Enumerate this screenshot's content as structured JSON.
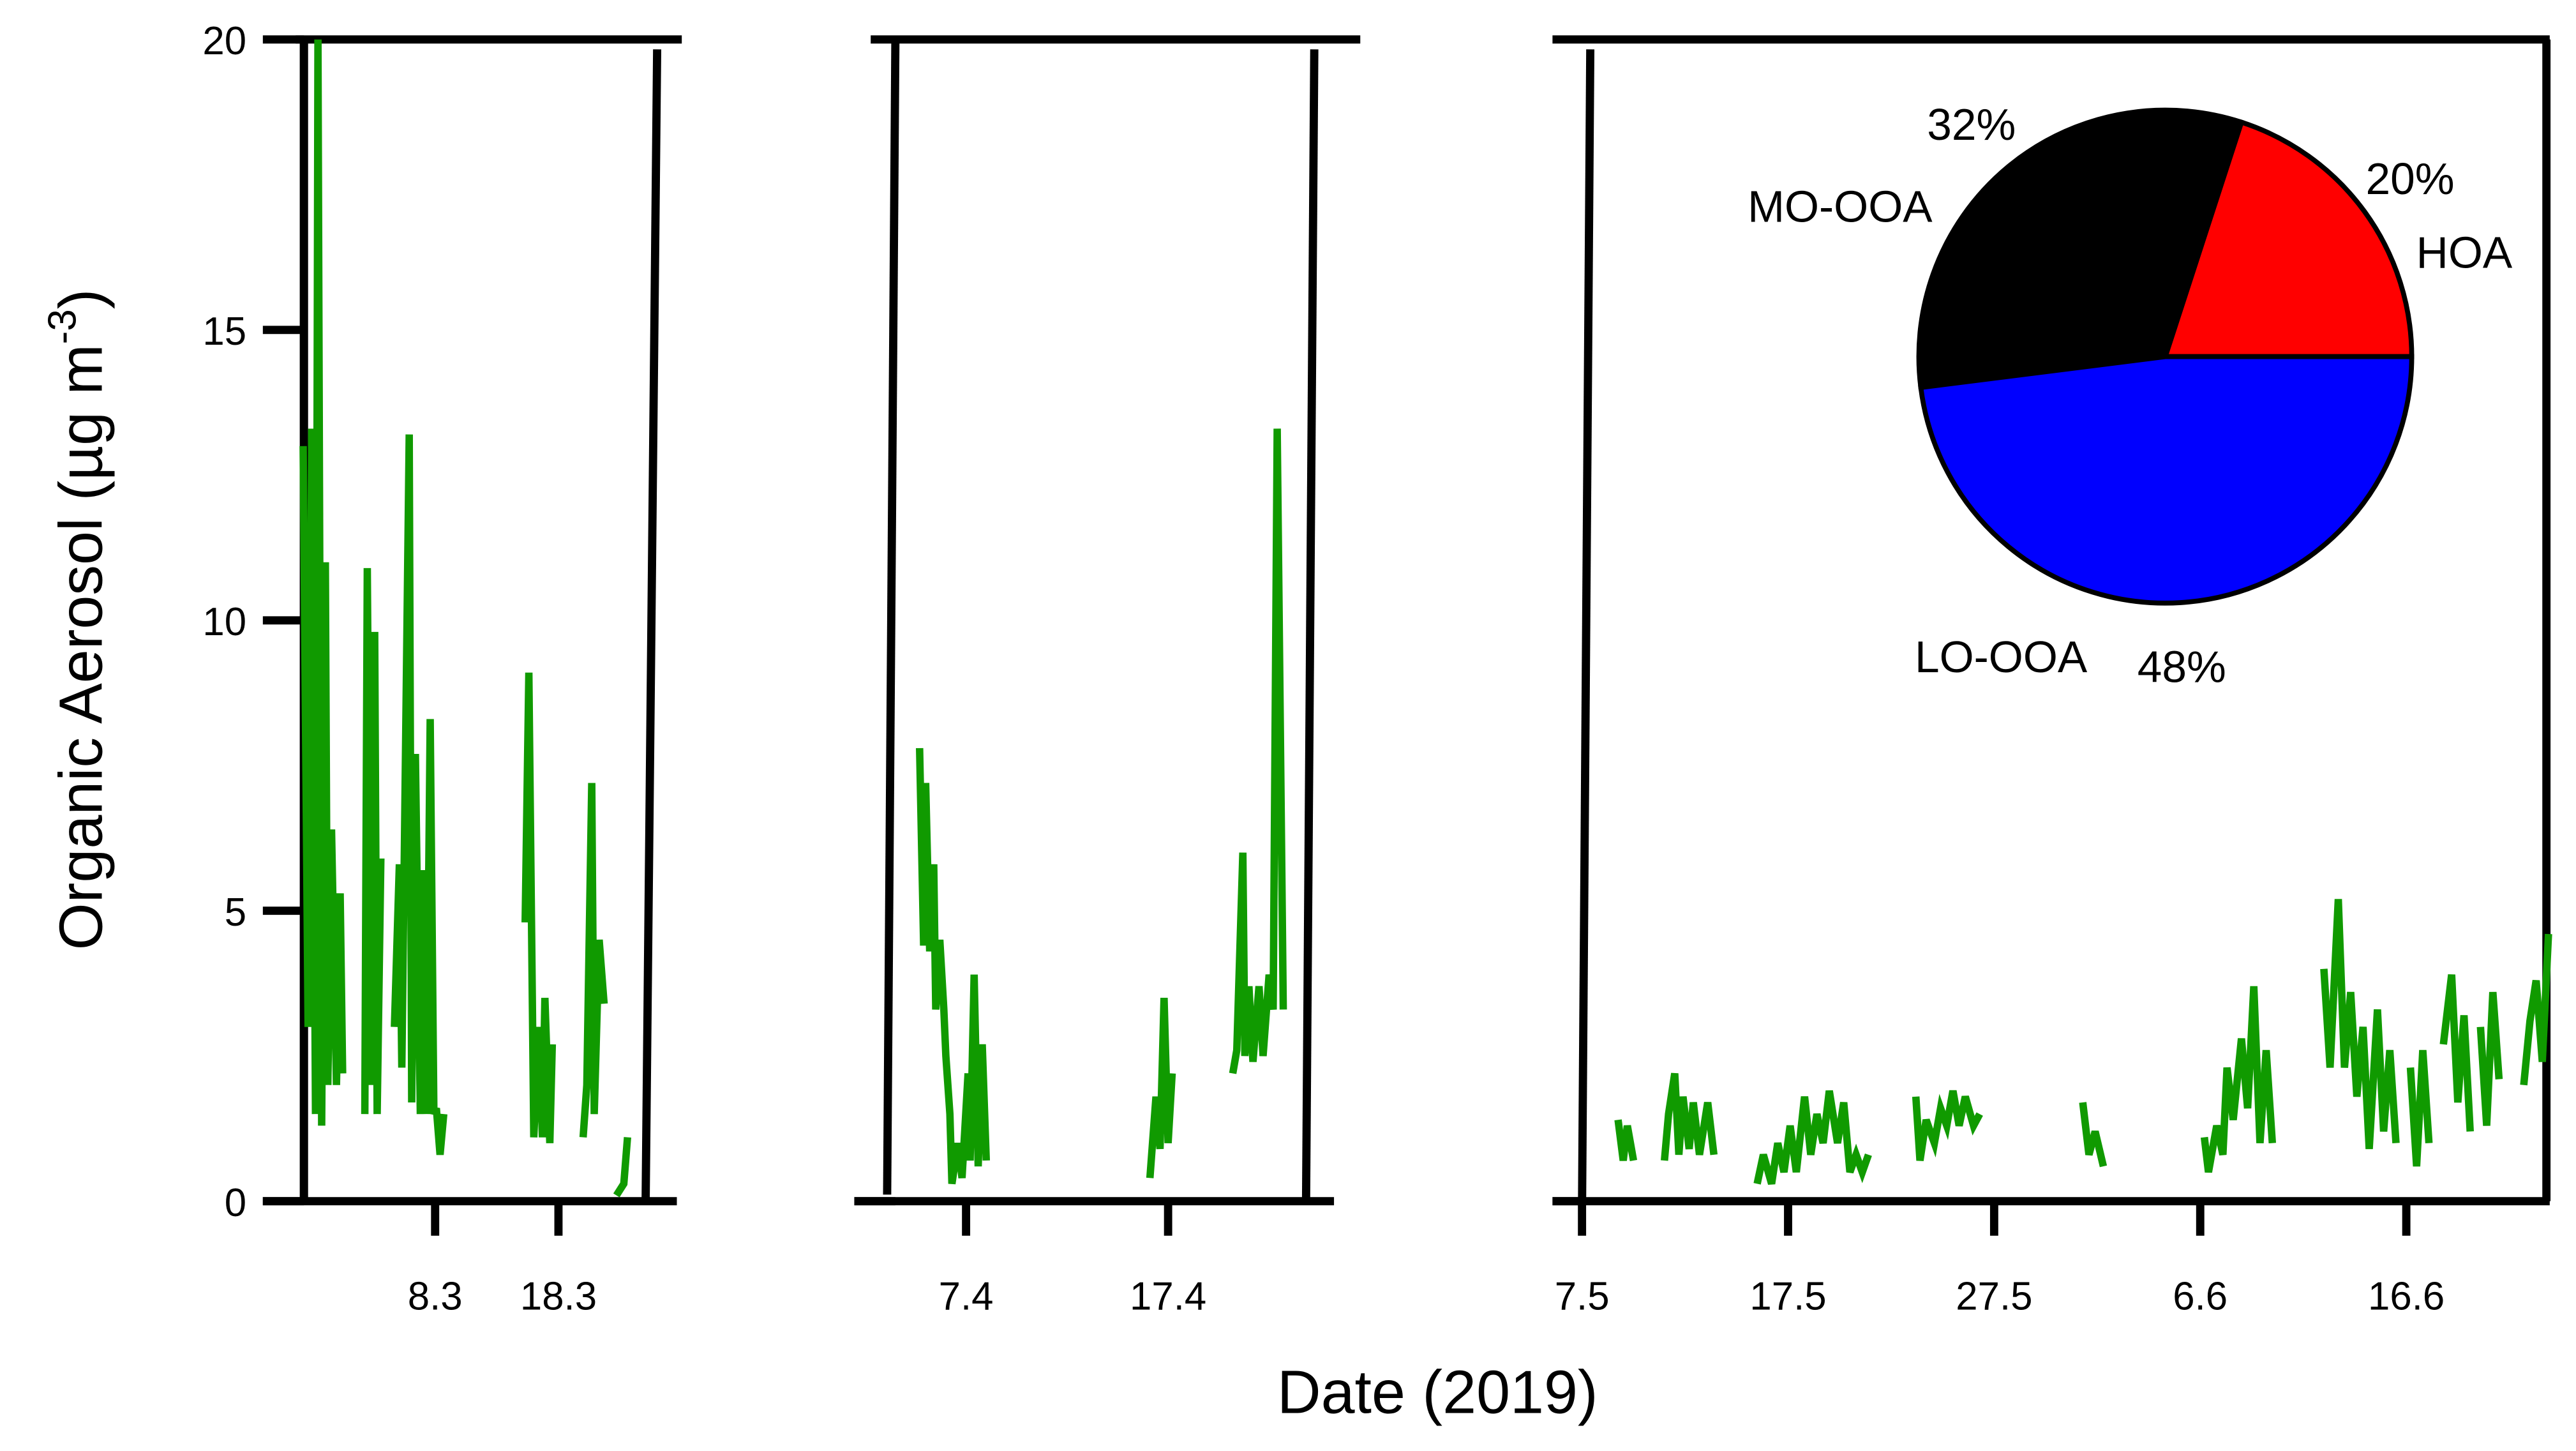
{
  "chart_data": {
    "type": "line",
    "title": "",
    "xlabel": "Date (2019)",
    "ylabel": "Organic Aerosol (µg m",
    "ylabel_sup": "-3",
    "ylabel_close": ")",
    "ylim": [
      0,
      20
    ],
    "yticks": [
      0,
      5,
      10,
      15,
      20
    ],
    "ytick_labels": [
      "0",
      "5",
      "10",
      "15",
      "20"
    ],
    "line_color": "#109a00",
    "panels": [
      {
        "xlim": [
          -7.3,
          28
        ],
        "xticks": [
          8,
          18
        ],
        "xtick_labels": [
          "8.3",
          "18.3"
        ],
        "segments": [
          [
            [
              -2.7,
              13
            ],
            [
              -2.3,
              3
            ],
            [
              -2.0,
              13.3
            ],
            [
              -1.7,
              1.5
            ],
            [
              -1.5,
              20
            ],
            [
              -1.2,
              1.3
            ],
            [
              -0.9,
              11
            ],
            [
              -0.7,
              2
            ],
            [
              -0.4,
              6.4
            ],
            [
              0,
              2
            ],
            [
              0.3,
              5.3
            ],
            [
              0.5,
              2.2
            ]
          ],
          [
            [
              2.3,
              1.5
            ],
            [
              2.5,
              10.9
            ],
            [
              2.8,
              2
            ],
            [
              3.1,
              9.8
            ],
            [
              3.3,
              1.5
            ],
            [
              3.6,
              5.9
            ]
          ],
          [
            [
              4.7,
              3
            ],
            [
              5.1,
              5.8
            ],
            [
              5.3,
              2.3
            ],
            [
              5.9,
              13.2
            ],
            [
              6.1,
              1.7
            ],
            [
              6.4,
              7.7
            ],
            [
              6.8,
              1.5
            ],
            [
              7.1,
              5.7
            ],
            [
              7.3,
              1.5
            ],
            [
              7.6,
              8.3
            ],
            [
              7.9,
              1.5
            ],
            [
              8.1,
              1.6
            ],
            [
              8.4,
              0.8
            ],
            [
              8.7,
              1.5
            ]
          ],
          [
            [
              15.3,
              4.8
            ],
            [
              15.6,
              9.1
            ],
            [
              16,
              1.1
            ],
            [
              16.4,
              3
            ],
            [
              16.7,
              1.1
            ],
            [
              16.9,
              3.5
            ],
            [
              17.3,
              1
            ],
            [
              17.5,
              2.7
            ]
          ],
          [
            [
              20,
              1.1
            ],
            [
              20.3,
              2
            ],
            [
              20.7,
              7.2
            ],
            [
              20.9,
              1.5
            ],
            [
              21.3,
              4.5
            ],
            [
              21.7,
              3.4
            ]
          ],
          [
            [
              22.7,
              0.1
            ],
            [
              23.3,
              0.3
            ],
            [
              23.6,
              1.1
            ]
          ]
        ]
      },
      {
        "xlim": [
          1.5,
          25
        ],
        "xticks": [
          7,
          17
        ],
        "xtick_labels": [
          "7.4",
          "17.4"
        ],
        "segments": [
          [
            [
              4.7,
              7.8
            ],
            [
              4.9,
              4.4
            ],
            [
              5.0,
              7.2
            ],
            [
              5.2,
              4.3
            ],
            [
              5.4,
              5.8
            ],
            [
              5.5,
              3.3
            ],
            [
              5.7,
              4.5
            ],
            [
              5.9,
              3.3
            ],
            [
              6.0,
              2.5
            ],
            [
              6.2,
              1.5
            ],
            [
              6.3,
              0.3
            ],
            [
              6.6,
              1.0
            ],
            [
              6.8,
              0.4
            ],
            [
              7.1,
              2.2
            ],
            [
              7.2,
              0.7
            ],
            [
              7.4,
              3.9
            ],
            [
              7.6,
              0.6
            ],
            [
              7.8,
              2.7
            ],
            [
              8.0,
              0.7
            ]
          ],
          [
            [
              16.1,
              0.4
            ],
            [
              16.4,
              1.8
            ],
            [
              16.6,
              0.9
            ],
            [
              16.8,
              3.5
            ],
            [
              17,
              1.0
            ],
            [
              17.2,
              2.2
            ]
          ],
          [
            [
              20.2,
              2.2
            ],
            [
              20.4,
              2.6
            ],
            [
              20.7,
              6.0
            ],
            [
              20.8,
              2.5
            ],
            [
              21,
              3.7
            ],
            [
              21.2,
              2.4
            ],
            [
              21.5,
              3.7
            ],
            [
              21.7,
              2.5
            ],
            [
              22,
              3.9
            ],
            [
              22.2,
              3.3
            ],
            [
              22.4,
              13.3
            ],
            [
              22.7,
              3.3
            ]
          ]
        ]
      },
      {
        "xlim": [
          -1.4,
          46.8
        ],
        "xticks": [
          0,
          10,
          20,
          30,
          40
        ],
        "xtick_labels": [
          "7.5",
          "17.5",
          "27.5",
          "6.6",
          "16.6"
        ],
        "segments": [
          [
            [
              1.75,
              1.4
            ],
            [
              2.0,
              0.7
            ],
            [
              2.2,
              1.3
            ],
            [
              2.5,
              0.7
            ]
          ],
          [
            [
              4.0,
              0.7
            ],
            [
              4.2,
              1.5
            ],
            [
              4.5,
              2.2
            ],
            [
              4.7,
              0.8
            ],
            [
              4.9,
              1.8
            ],
            [
              5.2,
              0.9
            ],
            [
              5.4,
              1.7
            ],
            [
              5.7,
              0.8
            ],
            [
              6.1,
              1.7
            ],
            [
              6.4,
              0.8
            ]
          ],
          [
            [
              8.5,
              0.3
            ],
            [
              8.8,
              0.8
            ],
            [
              9.2,
              0.3
            ],
            [
              9.5,
              1.0
            ],
            [
              9.8,
              0.5
            ],
            [
              10.1,
              1.3
            ],
            [
              10.4,
              0.5
            ],
            [
              10.8,
              1.8
            ],
            [
              11.1,
              0.8
            ],
            [
              11.4,
              1.5
            ],
            [
              11.7,
              1.0
            ],
            [
              12.0,
              1.9
            ],
            [
              12.4,
              1.0
            ],
            [
              12.7,
              1.7
            ],
            [
              13.0,
              0.5
            ],
            [
              13.3,
              0.8
            ],
            [
              13.6,
              0.5
            ],
            [
              13.9,
              0.8
            ]
          ],
          [
            [
              16.2,
              1.8
            ],
            [
              16.4,
              0.7
            ],
            [
              16.7,
              1.4
            ],
            [
              17.1,
              1.0
            ],
            [
              17.4,
              1.6
            ],
            [
              17.7,
              1.3
            ],
            [
              18.0,
              1.9
            ],
            [
              18.3,
              1.3
            ],
            [
              18.6,
              1.8
            ],
            [
              19.0,
              1.3
            ],
            [
              19.3,
              1.5
            ]
          ],
          [
            [
              24.3,
              1.7
            ],
            [
              24.6,
              0.8
            ],
            [
              24.9,
              1.2
            ],
            [
              25.3,
              0.6
            ]
          ],
          [
            [
              30.2,
              1.1
            ],
            [
              30.4,
              0.5
            ],
            [
              30.8,
              1.3
            ],
            [
              31.1,
              0.8
            ],
            [
              31.3,
              2.3
            ],
            [
              31.6,
              1.4
            ],
            [
              32.0,
              2.8
            ],
            [
              32.3,
              1.6
            ],
            [
              32.6,
              3.7
            ],
            [
              32.9,
              1.0
            ],
            [
              33.2,
              2.6
            ],
            [
              33.5,
              1.0
            ]
          ],
          [
            [
              36.0,
              4.0
            ],
            [
              36.3,
              2.3
            ],
            [
              36.7,
              5.2
            ],
            [
              37.0,
              2.3
            ],
            [
              37.3,
              3.6
            ],
            [
              37.6,
              1.8
            ],
            [
              37.9,
              3.0
            ],
            [
              38.2,
              0.9
            ],
            [
              38.6,
              3.3
            ],
            [
              38.9,
              1.2
            ],
            [
              39.2,
              2.6
            ],
            [
              39.5,
              1.0
            ]
          ],
          [
            [
              40.2,
              2.3
            ],
            [
              40.5,
              0.6
            ],
            [
              40.8,
              2.6
            ],
            [
              41.1,
              1.0
            ]
          ],
          [
            [
              41.8,
              2.7
            ],
            [
              42.2,
              3.9
            ],
            [
              42.5,
              1.7
            ],
            [
              42.8,
              3.2
            ],
            [
              43.1,
              1.2
            ]
          ],
          [
            [
              43.6,
              3.0
            ],
            [
              43.9,
              1.3
            ],
            [
              44.2,
              3.6
            ],
            [
              44.5,
              2.1
            ]
          ],
          [
            [
              45.7,
              2.0
            ],
            [
              46.0,
              3.1
            ],
            [
              46.3,
              3.8
            ],
            [
              46.6,
              2.4
            ],
            [
              46.9,
              4.6
            ]
          ]
        ]
      }
    ],
    "inset_pie": {
      "type": "pie",
      "slices": [
        {
          "name": "HOA",
          "value": 20,
          "label": "20%",
          "color": "#ff0000"
        },
        {
          "name": "MO-OOA",
          "value": 32,
          "label": "32%",
          "color": "#000000"
        },
        {
          "name": "LO-OOA",
          "value": 48,
          "label": "48%",
          "color": "#0000ff"
        }
      ]
    }
  }
}
